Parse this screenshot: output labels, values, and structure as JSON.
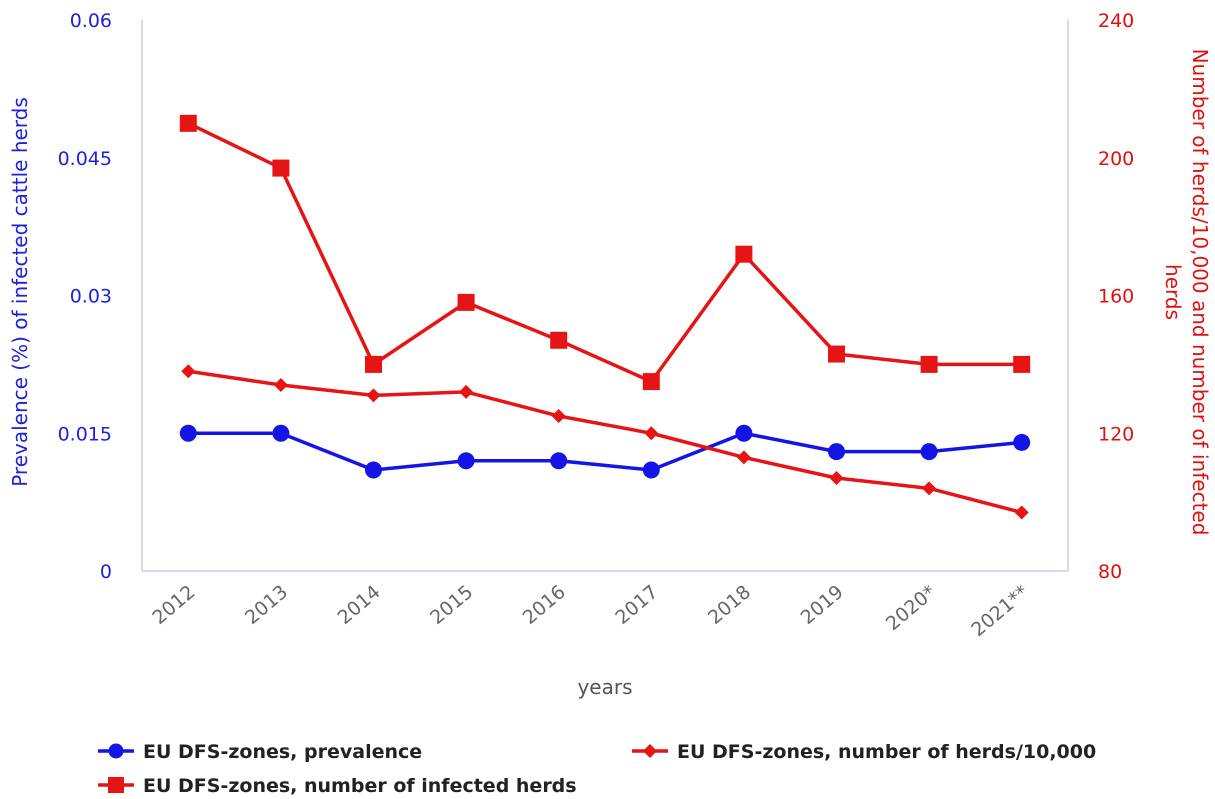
{
  "chart_data": {
    "type": "line",
    "xlabel": "years",
    "ylabel_left": "Prevalence (%) of infected cattle herds",
    "ylabel_right": "Number of herds/10,000 and number of infected herds",
    "categories": [
      "2012",
      "2013",
      "2014",
      "2015",
      "2016",
      "2017",
      "2018",
      "2019",
      "2020*",
      "2021**"
    ],
    "y_left": {
      "min": 0,
      "max": 0.06,
      "ticks": [
        "0",
        "0.015",
        "0.03",
        "0.045",
        "0.06"
      ],
      "color": "#1f1fe0"
    },
    "y_right": {
      "min": 80,
      "max": 240,
      "ticks": [
        "80",
        "120",
        "160",
        "200",
        "240"
      ],
      "color": "#e01010"
    },
    "series": [
      {
        "name": "EU DFS-zones, prevalence",
        "axis": "left",
        "marker": "circle",
        "color": "#1414e6",
        "values": [
          0.015,
          0.015,
          0.011,
          0.012,
          0.012,
          0.011,
          0.015,
          0.013,
          0.013,
          0.014
        ]
      },
      {
        "name": "EU DFS-zones, number of herds/10,000",
        "axis": "right",
        "marker": "diamond",
        "color": "#e61414",
        "values": [
          138,
          134,
          131,
          132,
          125,
          120,
          113,
          107,
          104,
          97
        ]
      },
      {
        "name": "EU DFS-zones, number of infected herds",
        "axis": "right",
        "marker": "square",
        "color": "#e61414",
        "values": [
          210,
          197,
          140,
          158,
          147,
          135,
          172,
          143,
          140,
          140
        ]
      }
    ],
    "legend": [
      {
        "label": "EU DFS-zones, prevalence",
        "marker": "circle"
      },
      {
        "label": "EU DFS-zones, number of herds/10,000",
        "marker": "diamond"
      },
      {
        "label": "EU DFS-zones, number of infected herds",
        "marker": "square"
      }
    ],
    "grid": false,
    "legend_position": "bottom"
  }
}
